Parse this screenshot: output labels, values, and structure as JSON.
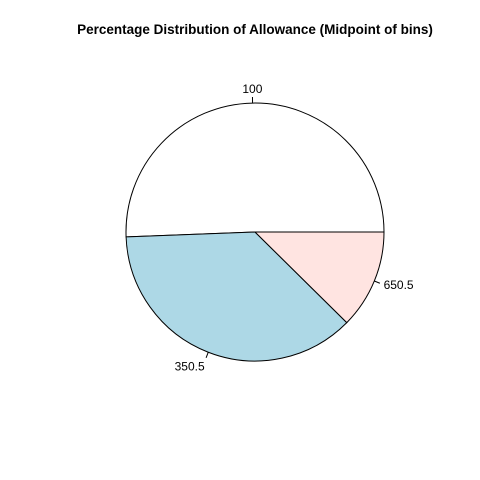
{
  "chart_data": {
    "type": "pie",
    "title": "Percentage Distribution of Allowance (Midpoint of bins)",
    "slices": [
      {
        "label": "100",
        "value": 50.6,
        "color": "#ffffff"
      },
      {
        "label": "350.5",
        "value": 37.0,
        "color": "#add8e6"
      },
      {
        "label": "650.5",
        "value": 12.4,
        "color": "#ffe4e1"
      }
    ],
    "start_angle_deg": 0,
    "direction": "counterclockwise",
    "border_color": "#000000"
  }
}
